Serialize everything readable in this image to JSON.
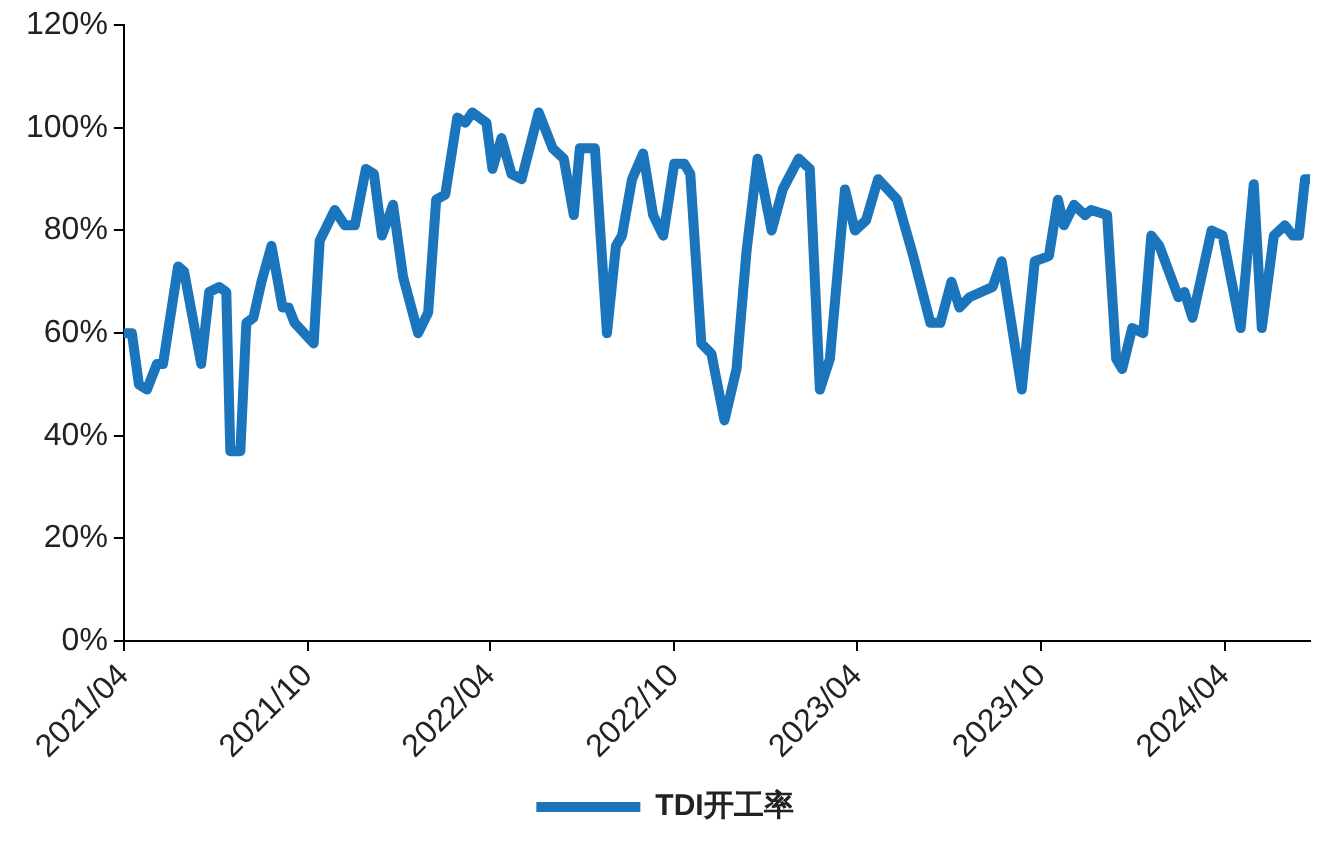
{
  "chart_data": {
    "type": "line",
    "legend": "bottom",
    "xlim": [
      "2021-04-01",
      "2024-06-25"
    ],
    "xticks": [
      {
        "value": "2021-04",
        "label": "2021/04"
      },
      {
        "value": "2021-10",
        "label": "2021/10"
      },
      {
        "value": "2022-04",
        "label": "2022/04"
      },
      {
        "value": "2022-10",
        "label": "2022/10"
      },
      {
        "value": "2023-04",
        "label": "2023/04"
      },
      {
        "value": "2023-10",
        "label": "2023/10"
      },
      {
        "value": "2024-04",
        "label": "2024/04"
      }
    ],
    "ylim": [
      0,
      120
    ],
    "yticks": [
      {
        "value": 0,
        "label": "0%"
      },
      {
        "value": 20,
        "label": "20%"
      },
      {
        "value": 40,
        "label": "40%"
      },
      {
        "value": 60,
        "label": "60%"
      },
      {
        "value": 80,
        "label": "80%"
      },
      {
        "value": 100,
        "label": "100%"
      },
      {
        "value": 120,
        "label": "120%"
      }
    ],
    "marker": "none",
    "line_style": "solid",
    "series": [
      {
        "name": "TDI开工率",
        "color": "#1a75bc",
        "x": [
          "2021-04-03",
          "2021-04-09",
          "2021-04-16",
          "2021-04-24",
          "2021-05-04",
          "2021-05-10",
          "2021-05-25",
          "2021-05-31",
          "2021-06-17",
          "2021-06-25",
          "2021-07-05",
          "2021-07-12",
          "2021-07-16",
          "2021-07-26",
          "2021-08-01",
          "2021-08-08",
          "2021-08-16",
          "2021-08-26",
          "2021-09-06",
          "2021-09-12",
          "2021-09-18",
          "2021-10-07",
          "2021-10-13",
          "2021-10-28",
          "2021-11-07",
          "2021-11-17",
          "2021-11-28",
          "2021-12-06",
          "2021-12-14",
          "2021-12-25",
          "2022-01-04",
          "2022-01-19",
          "2022-01-29",
          "2022-02-06",
          "2022-02-15",
          "2022-02-27",
          "2022-03-07",
          "2022-03-14",
          "2022-03-28",
          "2022-04-03",
          "2022-04-12",
          "2022-04-22",
          "2022-05-02",
          "2022-05-19",
          "2022-06-02",
          "2022-06-13",
          "2022-06-23",
          "2022-06-29",
          "2022-07-14",
          "2022-07-26",
          "2022-08-04",
          "2022-08-10",
          "2022-08-20",
          "2022-08-31",
          "2022-09-10",
          "2022-09-20",
          "2022-10-01",
          "2022-10-11",
          "2022-10-17",
          "2022-10-28",
          "2022-11-07",
          "2022-11-20",
          "2022-12-02",
          "2022-12-12",
          "2022-12-23",
          "2023-01-06",
          "2023-01-17",
          "2023-02-02",
          "2023-02-13",
          "2023-02-23",
          "2023-03-05",
          "2023-03-20",
          "2023-03-30",
          "2023-04-10",
          "2023-04-22",
          "2023-05-11",
          "2023-05-27",
          "2023-06-13",
          "2023-06-23",
          "2023-07-04",
          "2023-07-12",
          "2023-07-22",
          "2023-08-14",
          "2023-08-23",
          "2023-09-12",
          "2023-09-25",
          "2023-10-09",
          "2023-10-18",
          "2023-10-24",
          "2023-11-03",
          "2023-11-14",
          "2023-11-20",
          "2023-12-06",
          "2023-12-15",
          "2023-12-21",
          "2023-12-31",
          "2024-01-11",
          "2024-01-19",
          "2024-01-27",
          "2024-02-15",
          "2024-02-21",
          "2024-02-29",
          "2024-03-19",
          "2024-03-30",
          "2024-04-17",
          "2024-04-30",
          "2024-05-08",
          "2024-05-20",
          "2024-05-31",
          "2024-06-08",
          "2024-06-14",
          "2024-06-20",
          "2024-06-25"
        ],
        "values": [
          60,
          60,
          50,
          49,
          54,
          54,
          73,
          72,
          54,
          68,
          69,
          68,
          37,
          37,
          62,
          63,
          70,
          77,
          65,
          65,
          62,
          58,
          78,
          84,
          81,
          81,
          92,
          91,
          79,
          85,
          71,
          60,
          64,
          86,
          87,
          102,
          101,
          103,
          101,
          92,
          98,
          91,
          90,
          103,
          96,
          94,
          83,
          96,
          96,
          60,
          77,
          79,
          90,
          95,
          83,
          79,
          93,
          93,
          91,
          58,
          56,
          43,
          53,
          76,
          94,
          80,
          88,
          94,
          92,
          49,
          55,
          88,
          80,
          82,
          90,
          86,
          75,
          62,
          62,
          70,
          65,
          67,
          69,
          74,
          49,
          74,
          75,
          86,
          81,
          85,
          83,
          84,
          83,
          55,
          53,
          61,
          60,
          79,
          77,
          67,
          68,
          63,
          80,
          79,
          61,
          89,
          61,
          79,
          81,
          79,
          79,
          90,
          90
        ]
      }
    ]
  }
}
